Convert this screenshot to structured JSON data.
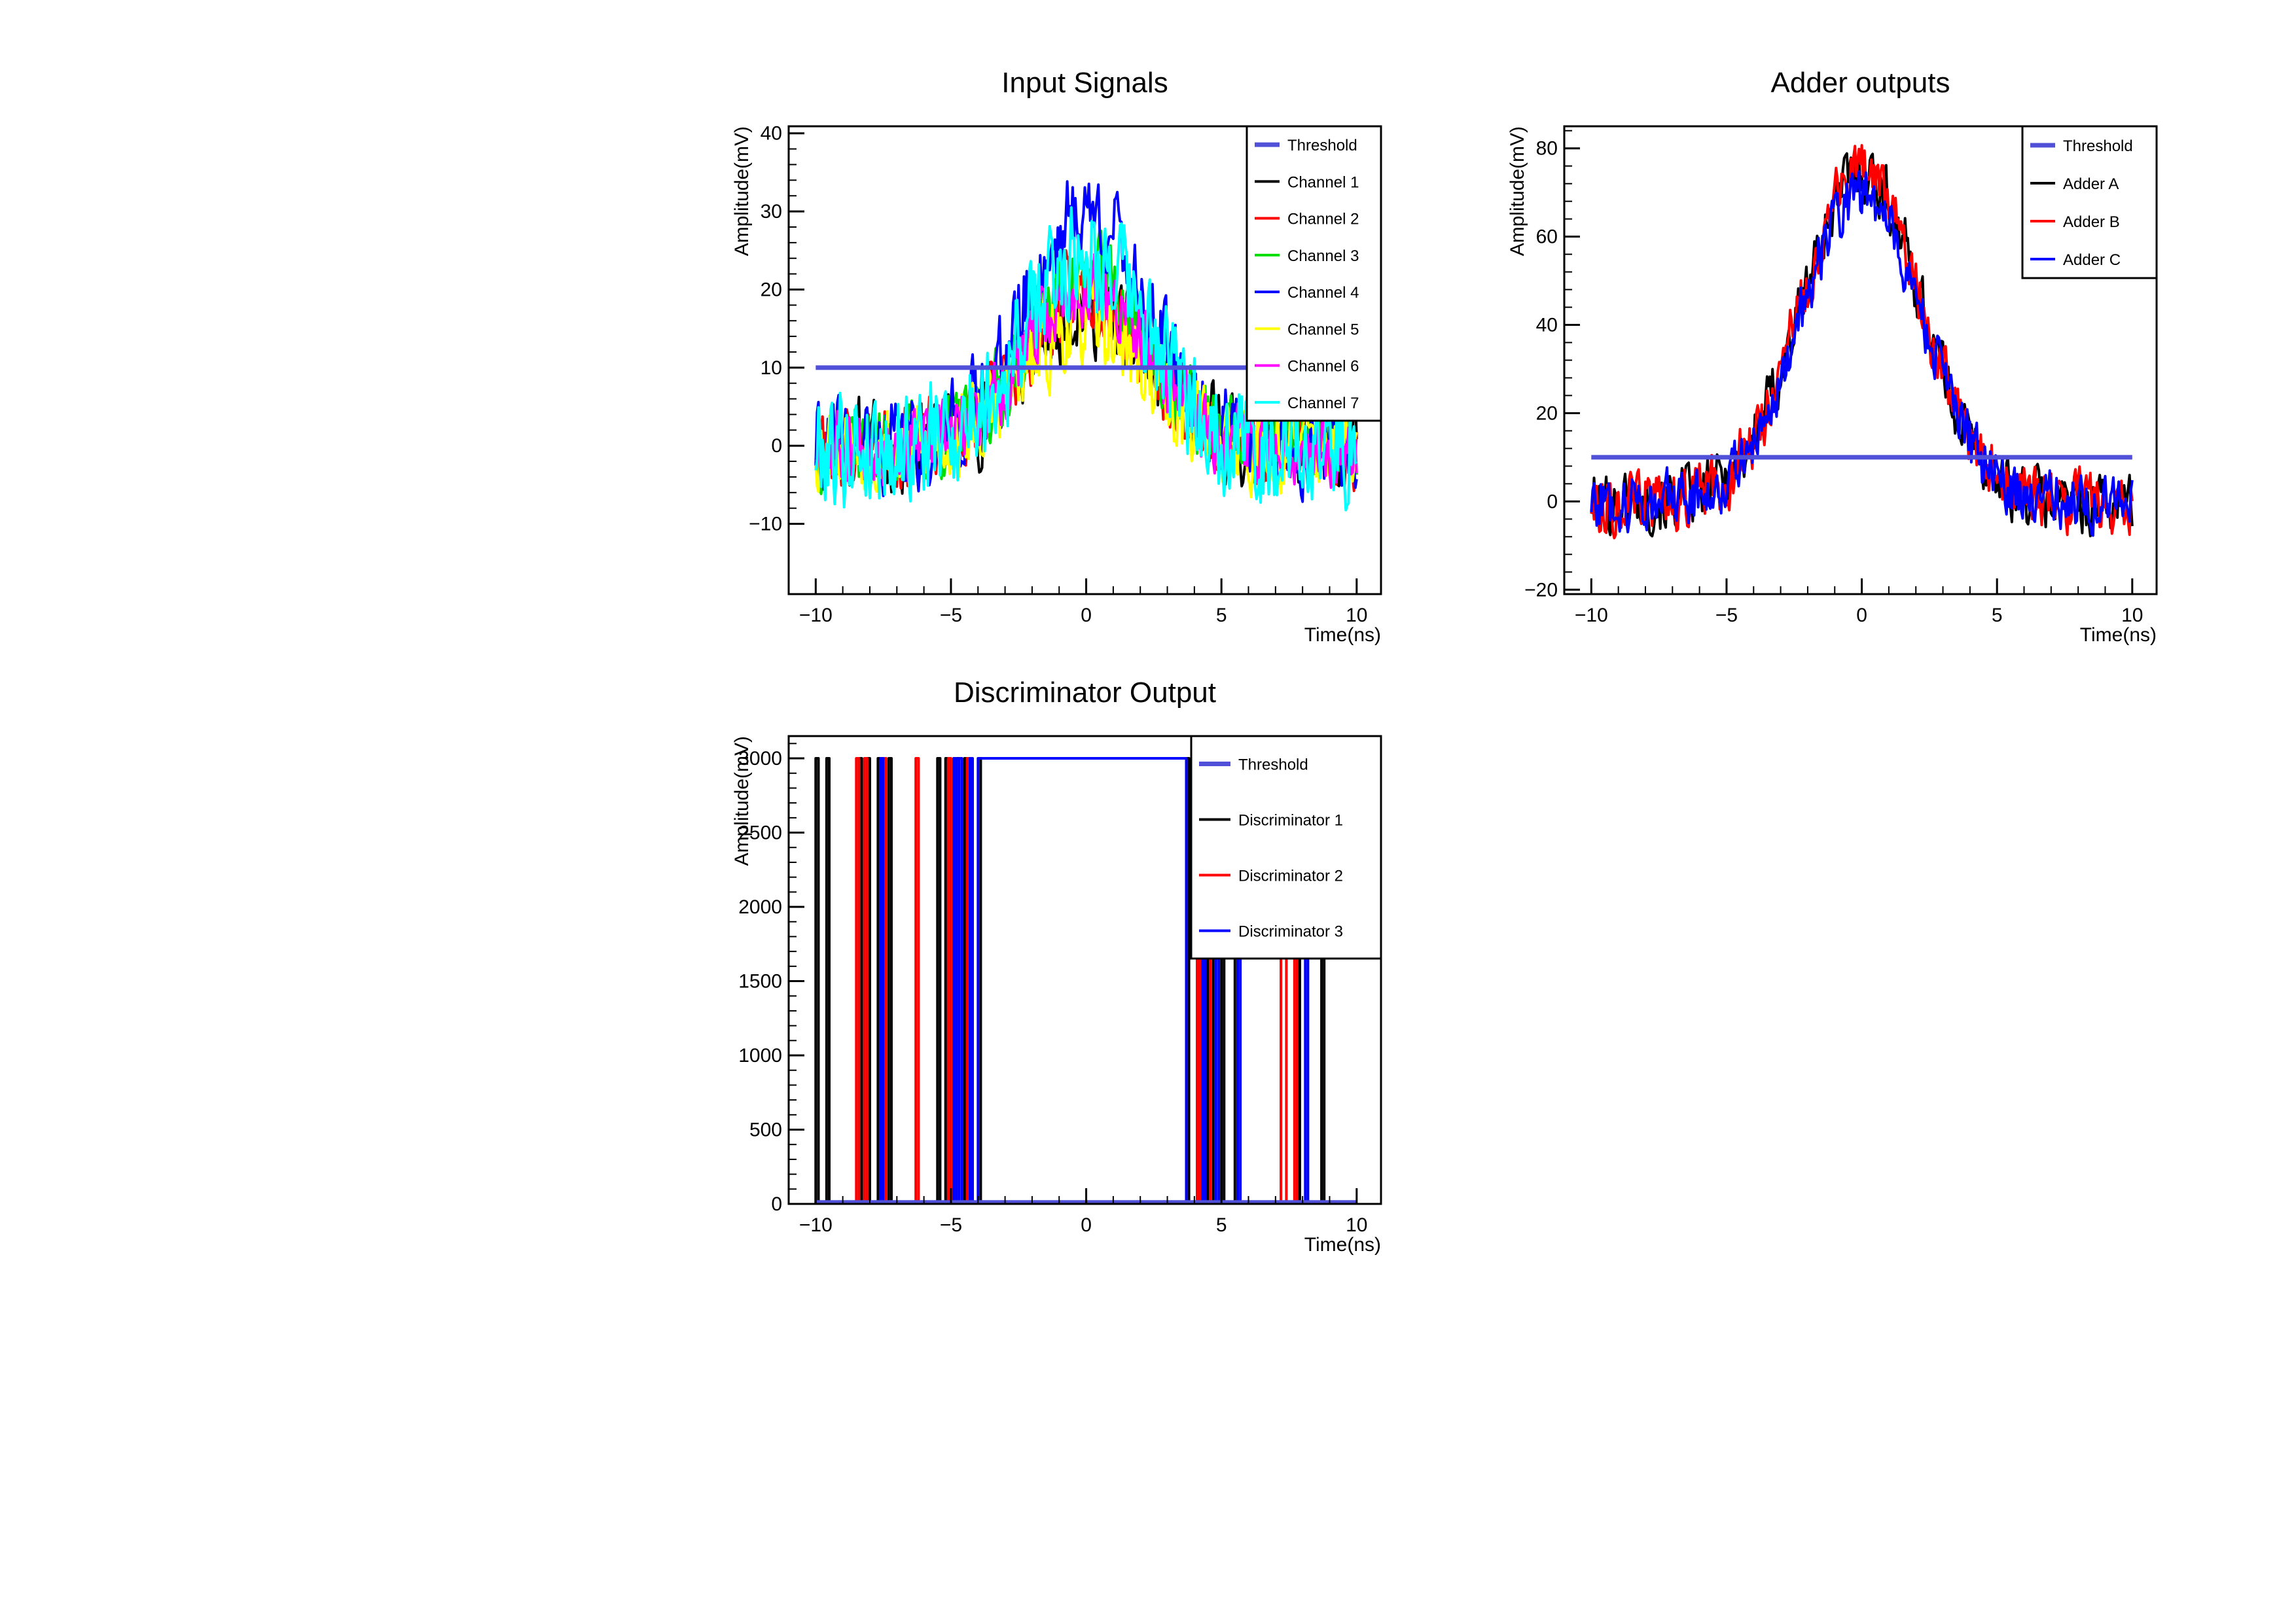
{
  "chart_data": [
    {
      "id": "input",
      "type": "line",
      "title": "Input Signals",
      "xlabel": "Time(ns)",
      "ylabel": "Amplitude(mV)",
      "xlim": [
        -11,
        10.9
      ],
      "ylim": [
        -19,
        40.9
      ],
      "xticks": [
        -10,
        -5,
        0,
        5,
        10
      ],
      "xtick_labels": [
        "−10",
        "−5",
        "0",
        "5",
        "10"
      ],
      "yticks": [
        -10,
        0,
        10,
        20,
        30,
        40
      ],
      "ytick_labels": [
        "−10",
        "0",
        "10",
        "20",
        "30",
        "40"
      ],
      "legend": "top-right",
      "threshold": {
        "name": "Threshold",
        "value": 10,
        "color": "#5050d8"
      },
      "series": [
        {
          "name": "Channel 1",
          "color": "#000000",
          "peak": 18,
          "noise": 5.0,
          "seed": 11
        },
        {
          "name": "Channel 2",
          "color": "#ff0000",
          "peak": 20,
          "noise": 4.5,
          "seed": 23
        },
        {
          "name": "Channel 3",
          "color": "#00dd00",
          "peak": 22,
          "noise": 4.5,
          "seed": 37
        },
        {
          "name": "Channel 4",
          "color": "#0000ff",
          "peak": 30,
          "noise": 5.0,
          "seed": 41
        },
        {
          "name": "Channel 5",
          "color": "#ffff00",
          "peak": 16,
          "noise": 5.0,
          "seed": 53
        },
        {
          "name": "Channel 6",
          "color": "#ff00ff",
          "peak": 20,
          "noise": 4.0,
          "seed": 67
        },
        {
          "name": "Channel 7",
          "color": "#00ffff",
          "peak": 25,
          "noise": 6.5,
          "seed": 79
        }
      ]
    },
    {
      "id": "adder",
      "type": "line",
      "title": "Adder outputs",
      "xlabel": "Time(ns)",
      "ylabel": "Amplitude(mV)",
      "xlim": [
        -11,
        10.9
      ],
      "ylim": [
        -21,
        85
      ],
      "xticks": [
        -10,
        -5,
        0,
        5,
        10
      ],
      "xtick_labels": [
        "−10",
        "−5",
        "0",
        "5",
        "10"
      ],
      "yticks": [
        -20,
        0,
        20,
        40,
        60,
        80
      ],
      "ytick_labels": [
        "−20",
        "0",
        "20",
        "40",
        "60",
        "80"
      ],
      "legend": "top-right",
      "threshold": {
        "name": "Threshold",
        "value": 10,
        "color": "#5050d8"
      },
      "series": [
        {
          "name": "Adder A",
          "color": "#000000",
          "peak": 75,
          "noise": 6.0,
          "seed": 101
        },
        {
          "name": "Adder B",
          "color": "#ff0000",
          "peak": 75,
          "noise": 6.0,
          "seed": 113
        },
        {
          "name": "Adder C",
          "color": "#0000ff",
          "peak": 70,
          "noise": 5.5,
          "seed": 127
        }
      ]
    },
    {
      "id": "disc",
      "type": "line",
      "title": "Discriminator Output",
      "xlabel": "Time(ns)",
      "ylabel": "Amplitude(mV)",
      "xlim": [
        -11,
        10.9
      ],
      "ylim": [
        0,
        3150
      ],
      "xticks": [
        -10,
        -5,
        0,
        5,
        10
      ],
      "xtick_labels": [
        "−10",
        "−5",
        "0",
        "5",
        "10"
      ],
      "yticks": [
        0,
        500,
        1000,
        1500,
        2000,
        2500,
        3000
      ],
      "ytick_labels": [
        "0",
        "500",
        "1000",
        "1500",
        "2000",
        "2500",
        "3000"
      ],
      "legend": "top-right",
      "threshold": {
        "name": "Threshold",
        "value": 10,
        "color": "#5050d8"
      },
      "series": [
        {
          "name": "Discriminator 1",
          "color": "#000000",
          "pulses": [
            [
              -10.0,
              -9.9
            ],
            [
              -9.6,
              -9.5
            ],
            [
              -8.4,
              -8.3
            ],
            [
              -8.1,
              -8.0
            ],
            [
              -7.7,
              -7.5
            ],
            [
              -7.3,
              -7.2
            ],
            [
              -5.5,
              -5.4
            ],
            [
              -5.2,
              -5.1
            ],
            [
              -4.8,
              -4.6
            ],
            [
              -4.5,
              -4.4
            ],
            [
              -3.9,
              3.8
            ],
            [
              4.2,
              4.3
            ],
            [
              4.5,
              4.7
            ],
            [
              5.0,
              5.1
            ],
            [
              5.5,
              5.6
            ],
            [
              7.8,
              7.9
            ],
            [
              8.7,
              8.8
            ]
          ]
        },
        {
          "name": "Discriminator 2",
          "color": "#ff0000",
          "pulses": [
            [
              -8.5,
              -8.4
            ],
            [
              -8.2,
              -8.1
            ],
            [
              -7.5,
              -7.4
            ],
            [
              -6.3,
              -6.2
            ],
            [
              -5.1,
              -5.0
            ],
            [
              -4.9,
              -4.8
            ],
            [
              -4.4,
              -4.3
            ],
            [
              4.1,
              4.2
            ],
            [
              4.4,
              4.6
            ],
            [
              7.2,
              7.4
            ],
            [
              7.7,
              7.8
            ]
          ]
        },
        {
          "name": "Discriminator 3",
          "color": "#0000ff",
          "pulses": [
            [
              -7.6,
              -7.5
            ],
            [
              -4.9,
              -4.8
            ],
            [
              -4.7,
              -4.6
            ],
            [
              -4.3,
              -4.2
            ],
            [
              -4.0,
              3.7
            ],
            [
              4.3,
              4.4
            ],
            [
              4.8,
              4.9
            ],
            [
              5.6,
              5.7
            ],
            [
              8.1,
              8.2
            ]
          ]
        }
      ]
    }
  ]
}
